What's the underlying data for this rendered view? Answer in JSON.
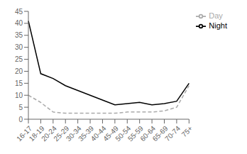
{
  "chart_data": {
    "type": "line",
    "categories": [
      "16-17",
      "18-19",
      "20-24",
      "25-29",
      "30-34",
      "35-39",
      "40-44",
      "45-49",
      "50-54",
      "55-59",
      "60-64",
      "65-69",
      "70-74",
      "75+"
    ],
    "series": [
      {
        "name": "Night",
        "color": "#000000",
        "line_style": "solid",
        "values": [
          41,
          19,
          17,
          14,
          12,
          10,
          8,
          6,
          6.5,
          7,
          6,
          6.5,
          7.5,
          15
        ]
      },
      {
        "name": "Day",
        "color": "#aaaaaa",
        "line_style": "dashed",
        "values": [
          10,
          7,
          3,
          2.5,
          2.5,
          2.5,
          2.5,
          2.5,
          3,
          3,
          3,
          3.5,
          5,
          14
        ]
      }
    ],
    "ylim": [
      0,
      45
    ],
    "yticks": [
      0,
      5,
      10,
      15,
      20,
      25,
      30,
      35,
      40,
      45
    ],
    "grid": false,
    "legend": "right"
  }
}
